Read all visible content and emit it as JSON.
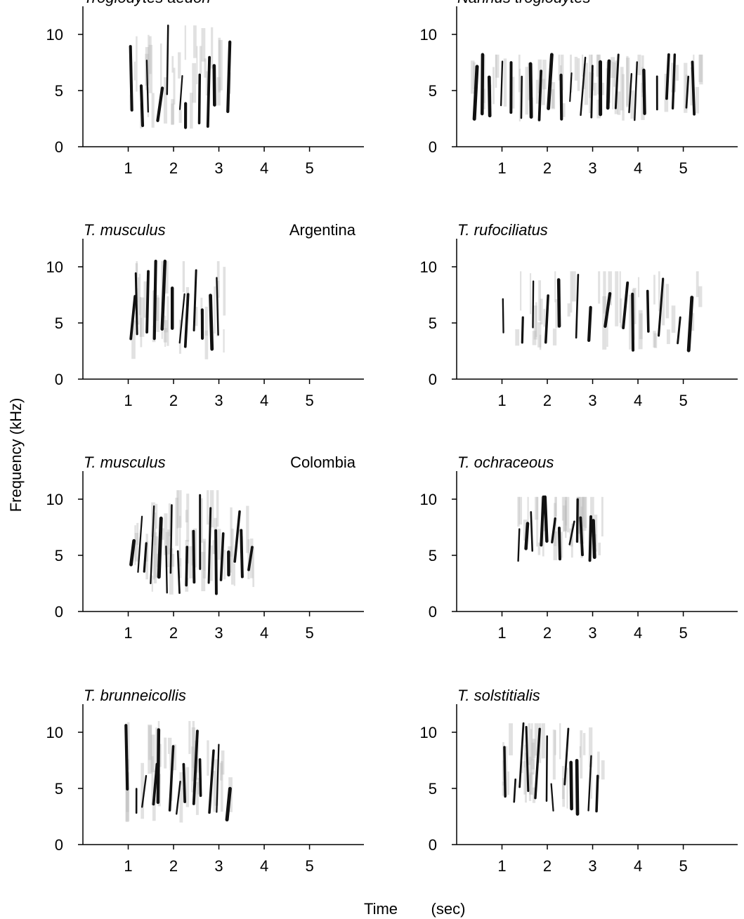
{
  "figure": {
    "ylabel": "Frequency (kHz)",
    "xlabel_time": "Time",
    "xlabel_unit": "(sec)"
  },
  "chart_data": [
    {
      "type": "spectrogram",
      "title": "Troglodytes aedon",
      "location": "",
      "xticks": [
        1,
        2,
        3,
        4,
        5
      ],
      "yticks": [
        0,
        5,
        10
      ],
      "xlim": [
        0,
        6.2
      ],
      "ylim": [
        0,
        12.5
      ],
      "song_extent_sec": [
        1.0,
        3.3
      ],
      "frequency_range_khz": [
        1.5,
        10.8
      ],
      "note_count": 11
    },
    {
      "type": "spectrogram",
      "title": "Nannus troglodytes",
      "location": "",
      "xticks": [
        1,
        2,
        3,
        4,
        5
      ],
      "yticks": [
        0,
        5,
        10
      ],
      "xlim": [
        0,
        6.2
      ],
      "ylim": [
        0,
        12.5
      ],
      "song_extent_sec": [
        0.3,
        5.4
      ],
      "frequency_range_khz": [
        2.2,
        8.2
      ],
      "note_count": 24
    },
    {
      "type": "spectrogram",
      "title": "T. musculus",
      "location": "Argentina",
      "xticks": [
        1,
        2,
        3,
        4,
        5
      ],
      "yticks": [
        0,
        5,
        10
      ],
      "xlim": [
        0,
        6.2
      ],
      "ylim": [
        0,
        12.5
      ],
      "song_extent_sec": [
        1.0,
        3.1
      ],
      "frequency_range_khz": [
        1.5,
        10.5
      ],
      "note_count": 12
    },
    {
      "type": "spectrogram",
      "title": "T. rufociliatus",
      "location": "",
      "xticks": [
        1,
        2,
        3,
        4,
        5
      ],
      "yticks": [
        0,
        5,
        10
      ],
      "xlim": [
        0,
        6.2
      ],
      "ylim": [
        0,
        12.5
      ],
      "song_extent_sec": [
        1.0,
        5.4
      ],
      "frequency_range_khz": [
        2.5,
        9.6
      ],
      "note_count": 14
    },
    {
      "type": "spectrogram",
      "title": "T. musculus",
      "location": "Colombia",
      "xticks": [
        1,
        2,
        3,
        4,
        5
      ],
      "yticks": [
        0,
        5,
        10
      ],
      "xlim": [
        0,
        6.2
      ],
      "ylim": [
        0,
        12.5
      ],
      "song_extent_sec": [
        1.0,
        3.8
      ],
      "frequency_range_khz": [
        1.5,
        10.8
      ],
      "note_count": 18
    },
    {
      "type": "spectrogram",
      "title": "T. ochraceous",
      "location": "",
      "xticks": [
        1,
        2,
        3,
        4,
        5
      ],
      "yticks": [
        0,
        5,
        10
      ],
      "xlim": [
        0,
        6.2
      ],
      "ylim": [
        0,
        12.5
      ],
      "song_extent_sec": [
        1.3,
        3.2
      ],
      "frequency_range_khz": [
        4.5,
        10.2
      ],
      "note_count": 12
    },
    {
      "type": "spectrogram",
      "title": "T. brunneicollis",
      "location": "",
      "xticks": [
        1,
        2,
        3,
        4,
        5
      ],
      "yticks": [
        0,
        5,
        10
      ],
      "xlim": [
        0,
        6.2
      ],
      "ylim": [
        0,
        12.5
      ],
      "song_extent_sec": [
        0.9,
        3.3
      ],
      "frequency_range_khz": [
        1.8,
        11.0
      ],
      "note_count": 13
    },
    {
      "type": "spectrogram",
      "title": "T. solstitialis",
      "location": "",
      "xticks": [
        1,
        2,
        3,
        4,
        5
      ],
      "yticks": [
        0,
        5,
        10
      ],
      "xlim": [
        0,
        6.2
      ],
      "ylim": [
        0,
        12.5
      ],
      "song_extent_sec": [
        1.0,
        3.2
      ],
      "frequency_range_khz": [
        2.7,
        10.8
      ],
      "note_count": 12
    }
  ]
}
